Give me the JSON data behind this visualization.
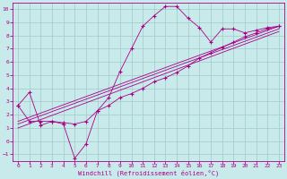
{
  "bg_color": "#c8eaea",
  "grid_color": "#a0c8c8",
  "line_color": "#aa0088",
  "marker": "+",
  "xlabel": "Windchill (Refroidissement éolien,°C)",
  "xlim": [
    -0.5,
    23.5
  ],
  "ylim": [
    -1.5,
    10.5
  ],
  "xticks": [
    0,
    1,
    2,
    3,
    4,
    5,
    6,
    7,
    8,
    9,
    10,
    11,
    12,
    13,
    14,
    15,
    16,
    17,
    18,
    19,
    20,
    21,
    22,
    23
  ],
  "yticks": [
    -1,
    0,
    1,
    2,
    3,
    4,
    5,
    6,
    7,
    8,
    9,
    10
  ],
  "series": [
    {
      "x": [
        0,
        1,
        2,
        3,
        4,
        5,
        6,
        7,
        8,
        9,
        10,
        11,
        12,
        13,
        14,
        15,
        16,
        17,
        18,
        19,
        20,
        21,
        22,
        23
      ],
      "y": [
        2.7,
        3.7,
        1.2,
        1.5,
        1.3,
        -1.3,
        -0.2,
        2.3,
        3.3,
        5.3,
        7.0,
        8.7,
        9.5,
        10.2,
        10.2,
        9.3,
        8.6,
        7.5,
        8.5,
        8.5,
        8.2,
        8.4,
        8.6,
        8.7
      ],
      "marker": true
    },
    {
      "x": [
        0,
        1,
        2,
        3,
        4,
        5,
        6,
        7,
        8,
        9,
        10,
        11,
        12,
        13,
        14,
        15,
        16,
        17,
        18,
        19,
        20,
        21,
        22,
        23
      ],
      "y": [
        2.7,
        1.5,
        1.5,
        1.5,
        1.4,
        1.3,
        1.5,
        2.3,
        2.7,
        3.3,
        3.6,
        4.0,
        4.5,
        4.8,
        5.2,
        5.7,
        6.3,
        6.7,
        7.1,
        7.5,
        7.9,
        8.2,
        8.5,
        8.7
      ],
      "marker": true
    },
    {
      "x": [
        0,
        23
      ],
      "y": [
        1.5,
        8.7
      ],
      "marker": false
    },
    {
      "x": [
        0,
        23
      ],
      "y": [
        1.3,
        8.5
      ],
      "marker": false
    },
    {
      "x": [
        0,
        23
      ],
      "y": [
        1.0,
        8.3
      ],
      "marker": false
    }
  ]
}
